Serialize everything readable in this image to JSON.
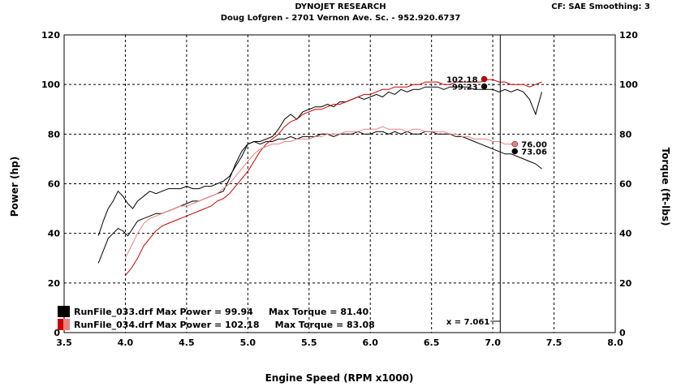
{
  "header": {
    "title": "DYNOJET RESEARCH",
    "subtitle": "Doug Lofgren - 2701 Vernon Ave. Sc. - 952.920.6737",
    "settings": "CF: SAE  Smoothing: 3"
  },
  "chart_data": {
    "type": "line",
    "xlabel": "Engine Speed (RPM x1000)",
    "ylabel_left": "Power (hp)",
    "ylabel_right": "Torque (ft-lbs)",
    "xlim": [
      3.5,
      8.0
    ],
    "ylim": [
      0,
      120
    ],
    "x_ticks": [
      "3.5",
      "4.0",
      "4.5",
      "5.0",
      "5.5",
      "6.0",
      "6.5",
      "7.0",
      "7.5",
      "8.0"
    ],
    "y_ticks": [
      "0",
      "20",
      "40",
      "60",
      "80",
      "100",
      "120"
    ],
    "grid": true,
    "cursor": {
      "x": 7.061,
      "label": "x = 7.061"
    },
    "legend": [
      {
        "text": "RunFile_033.drf Max Power = 99.94     Max Torque = 81.40",
        "colors": [
          "#000000",
          "#000000"
        ]
      },
      {
        "text": "RunFile_034.drf Max Power = 102.18     Max Torque = 83.08",
        "colors": [
          "#cc0000",
          "#f08080"
        ]
      }
    ],
    "series": [
      {
        "id": "power_033",
        "kind": "power",
        "color": "#000000",
        "x": [
          3.78,
          3.82,
          3.86,
          3.9,
          3.94,
          3.98,
          4.02,
          4.06,
          4.1,
          4.15,
          4.2,
          4.25,
          4.3,
          4.35,
          4.4,
          4.45,
          4.5,
          4.55,
          4.6,
          4.65,
          4.7,
          4.75,
          4.8,
          4.85,
          4.9,
          4.95,
          5.0,
          5.05,
          5.1,
          5.15,
          5.2,
          5.25,
          5.3,
          5.35,
          5.4,
          5.45,
          5.5,
          5.55,
          5.6,
          5.65,
          5.7,
          5.75,
          5.8,
          5.85,
          5.9,
          5.95,
          6.0,
          6.05,
          6.1,
          6.15,
          6.2,
          6.25,
          6.3,
          6.35,
          6.4,
          6.45,
          6.5,
          6.55,
          6.6,
          6.65,
          6.7,
          6.75,
          6.8,
          6.85,
          6.9,
          6.95,
          7.0,
          7.05,
          7.1,
          7.15,
          7.2,
          7.25,
          7.3,
          7.35,
          7.4
        ],
        "y": [
          28,
          33,
          38,
          40,
          42,
          41,
          39,
          42,
          45,
          46,
          47,
          48,
          48,
          49,
          50,
          51,
          52,
          53,
          53,
          54,
          55,
          56,
          57,
          62,
          68,
          73,
          76,
          77,
          77,
          78,
          79,
          82,
          86,
          88,
          86,
          89,
          90,
          91,
          91,
          92,
          91,
          93,
          93,
          94,
          95,
          94,
          95,
          96,
          95,
          97,
          96,
          98,
          97,
          98,
          98,
          99,
          99,
          99,
          98,
          99,
          99,
          99,
          99,
          98,
          98,
          98,
          98,
          97,
          98,
          97,
          98,
          97,
          94,
          88,
          97
        ]
      },
      {
        "id": "torque_033",
        "kind": "torque",
        "color": "#000000",
        "x": [
          3.78,
          3.82,
          3.86,
          3.9,
          3.94,
          3.98,
          4.02,
          4.06,
          4.1,
          4.15,
          4.2,
          4.25,
          4.3,
          4.35,
          4.4,
          4.45,
          4.5,
          4.55,
          4.6,
          4.65,
          4.7,
          4.75,
          4.8,
          4.85,
          4.9,
          4.95,
          5.0,
          5.05,
          5.1,
          5.15,
          5.2,
          5.25,
          5.3,
          5.35,
          5.4,
          5.45,
          5.5,
          5.55,
          5.6,
          5.65,
          5.7,
          5.75,
          5.8,
          5.85,
          5.9,
          5.95,
          6.0,
          6.05,
          6.1,
          6.15,
          6.2,
          6.25,
          6.3,
          6.35,
          6.4,
          6.45,
          6.5,
          6.55,
          6.6,
          6.65,
          6.7,
          6.75,
          6.8,
          6.85,
          6.9,
          6.95,
          7.0,
          7.05,
          7.1,
          7.15,
          7.2,
          7.25,
          7.3,
          7.35,
          7.4
        ],
        "y": [
          39,
          45,
          50,
          53,
          57,
          55,
          52,
          50,
          53,
          55,
          57,
          56,
          57,
          58,
          58,
          58,
          59,
          58,
          58,
          59,
          59,
          60,
          61,
          63,
          67,
          71,
          76,
          77,
          76,
          77,
          77,
          78,
          78,
          79,
          78,
          79,
          79,
          79,
          80,
          80,
          79,
          80,
          80,
          80,
          81,
          80,
          80,
          81,
          81,
          80,
          81,
          80,
          81,
          80,
          80,
          81,
          81,
          80,
          80,
          80,
          79,
          79,
          78,
          77,
          76,
          75,
          74,
          73,
          72,
          72,
          71,
          70,
          69,
          68,
          66
        ]
      },
      {
        "id": "power_034",
        "kind": "power",
        "color": "#cc0000",
        "x": [
          4.0,
          4.05,
          4.1,
          4.15,
          4.2,
          4.25,
          4.3,
          4.35,
          4.4,
          4.45,
          4.5,
          4.55,
          4.6,
          4.65,
          4.7,
          4.75,
          4.8,
          4.85,
          4.9,
          4.95,
          5.0,
          5.05,
          5.1,
          5.15,
          5.2,
          5.25,
          5.3,
          5.35,
          5.4,
          5.45,
          5.5,
          5.55,
          5.6,
          5.65,
          5.7,
          5.75,
          5.8,
          5.85,
          5.9,
          5.95,
          6.0,
          6.05,
          6.1,
          6.15,
          6.2,
          6.25,
          6.3,
          6.35,
          6.4,
          6.45,
          6.5,
          6.55,
          6.6,
          6.65,
          6.7,
          6.75,
          6.8,
          6.85,
          6.9,
          6.95,
          7.0,
          7.05,
          7.1,
          7.15,
          7.2,
          7.25,
          7.3,
          7.35,
          7.4
        ],
        "y": [
          23,
          26,
          30,
          35,
          38,
          41,
          43,
          44,
          45,
          46,
          47,
          48,
          49,
          50,
          51,
          53,
          54,
          56,
          59,
          62,
          65,
          69,
          73,
          76,
          78,
          80,
          83,
          85,
          86,
          88,
          89,
          90,
          90,
          91,
          92,
          92,
          93,
          94,
          95,
          96,
          96,
          97,
          98,
          98,
          99,
          99,
          99,
          100,
          100,
          101,
          101,
          101,
          100,
          100,
          101,
          101,
          101,
          101,
          101,
          102,
          102,
          101,
          101,
          100,
          100,
          100,
          99,
          100,
          101
        ]
      },
      {
        "id": "torque_034",
        "kind": "torque",
        "color": "#f08080",
        "x": [
          4.0,
          4.05,
          4.1,
          4.15,
          4.2,
          4.25,
          4.3,
          4.35,
          4.4,
          4.45,
          4.5,
          4.55,
          4.6,
          4.65,
          4.7,
          4.75,
          4.8,
          4.85,
          4.9,
          4.95,
          5.0,
          5.05,
          5.1,
          5.15,
          5.2,
          5.25,
          5.3,
          5.35,
          5.4,
          5.45,
          5.5,
          5.55,
          5.6,
          5.65,
          5.7,
          5.75,
          5.8,
          5.85,
          5.9,
          5.95,
          6.0,
          6.05,
          6.1,
          6.15,
          6.2,
          6.25,
          6.3,
          6.35,
          6.4,
          6.45,
          6.5,
          6.55,
          6.6,
          6.65,
          6.7,
          6.75,
          6.8,
          6.85,
          6.9,
          6.95,
          7.0,
          7.05,
          7.1,
          7.15,
          7.2
        ],
        "y": [
          30,
          35,
          40,
          44,
          46,
          47,
          48,
          49,
          50,
          51,
          51,
          52,
          53,
          54,
          55,
          56,
          58,
          60,
          63,
          66,
          69,
          72,
          74,
          75,
          76,
          76,
          77,
          77,
          78,
          78,
          78,
          79,
          79,
          80,
          80,
          80,
          81,
          81,
          81,
          82,
          82,
          82,
          83,
          82,
          82,
          82,
          81,
          82,
          82,
          81,
          81,
          81,
          81,
          80,
          80,
          79,
          79,
          78,
          78,
          78,
          77,
          77,
          76,
          76,
          76
        ]
      }
    ],
    "annotations": [
      {
        "x": 6.93,
        "y": 102.18,
        "label": "102.18",
        "color": "#cc0000"
      },
      {
        "x": 6.93,
        "y": 99.23,
        "label": "99.23",
        "color": "#000000"
      },
      {
        "x": 7.18,
        "y": 76.0,
        "label": "76.00",
        "color": "#f08080"
      },
      {
        "x": 7.18,
        "y": 73.06,
        "label": "73.06",
        "color": "#000000"
      }
    ]
  }
}
